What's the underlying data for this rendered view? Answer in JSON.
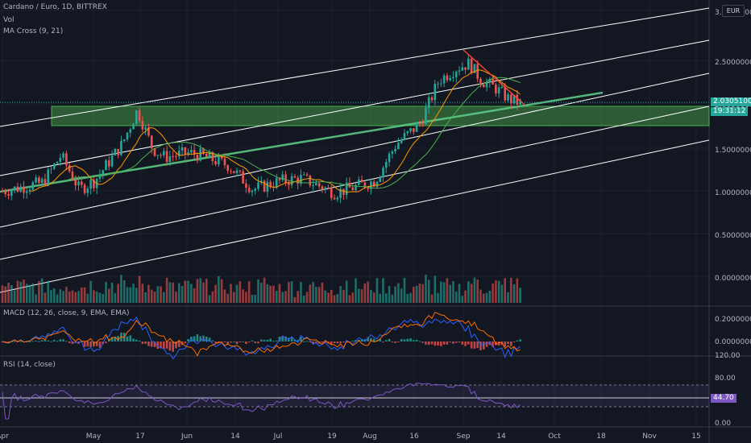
{
  "header": {
    "symbol_line": "Cardano / Euro, 1D, BITTREX",
    "vol_label": "Vol",
    "ma_label": "MA Cross (9, 21)",
    "currency": "EUR"
  },
  "price_axis": {
    "ticks": [
      "3.00000000",
      "2.50000000",
      "2.00000000",
      "1.50000000",
      "1.00000000",
      "0.50000000",
      "0.00000000"
    ],
    "last_price": "2.03051000",
    "countdown": "19:31:12"
  },
  "macd": {
    "label": "MACD (12, 26, close, 9, EMA, EMA)",
    "ticks": [
      "0.20000000",
      "0.00000000"
    ]
  },
  "rsi": {
    "label": "RSI (14, close)",
    "ticks": [
      "120.00",
      "80.00",
      "0.00"
    ],
    "value": "44.70"
  },
  "time_axis": {
    "labels": [
      "Apr",
      "May",
      "17",
      "Jun",
      "14",
      "Jul",
      "19",
      "Aug",
      "16",
      "Sep",
      "14",
      "Oct",
      "18",
      "Nov",
      "15"
    ]
  },
  "colors": {
    "background": "#131722",
    "up": "#26a69a",
    "down": "#ef5350",
    "channel": "#ffffff",
    "zone": "#4caf50",
    "trend_down": "#f44336",
    "macd_line": "#2962ff",
    "signal_line": "#ff6d00",
    "rsi_line": "#7e57c2",
    "ma_fast": "#ff9800",
    "ma_slow": "#4caf50"
  },
  "chart_data": {
    "type": "candlestick",
    "symbol": "Cardano / Euro",
    "interval": "1D",
    "exchange": "BITTREX",
    "ylim": [
      0,
      3.05
    ],
    "x_range": [
      "Apr",
      "Nov"
    ],
    "close_series": [
      {
        "date": "Apr",
        "close": 1.0
      },
      {
        "date": "Apr 14",
        "close": 1.1
      },
      {
        "date": "Apr 20",
        "close": 1.42
      },
      {
        "date": "Apr 26",
        "close": 1.02
      },
      {
        "date": "May",
        "close": 1.12
      },
      {
        "date": "May 10",
        "close": 1.55
      },
      {
        "date": "May 15",
        "close": 1.95
      },
      {
        "date": "May 17",
        "close": 1.78
      },
      {
        "date": "May 20",
        "close": 1.5
      },
      {
        "date": "May 24",
        "close": 1.4
      },
      {
        "date": "Jun",
        "close": 1.45
      },
      {
        "date": "Jun 5",
        "close": 1.42
      },
      {
        "date": "Jun 14",
        "close": 1.3
      },
      {
        "date": "Jun 22",
        "close": 1.02
      },
      {
        "date": "Jul",
        "close": 1.12
      },
      {
        "date": "Jul 8",
        "close": 1.15
      },
      {
        "date": "Jul 19",
        "close": 0.98
      },
      {
        "date": "Aug",
        "close": 1.12
      },
      {
        "date": "Aug 8",
        "close": 1.55
      },
      {
        "date": "Aug 16",
        "close": 1.8
      },
      {
        "date": "Aug 22",
        "close": 2.3
      },
      {
        "date": "Aug 28",
        "close": 2.45
      },
      {
        "date": "Sep",
        "close": 2.5
      },
      {
        "date": "Sep 5",
        "close": 2.3
      },
      {
        "date": "Sep 10",
        "close": 2.2
      },
      {
        "date": "Sep 14",
        "close": 2.08
      },
      {
        "date": "Sep 18",
        "close": 2.03
      }
    ],
    "last_price": 2.03051,
    "rsi_last": 44.7
  }
}
